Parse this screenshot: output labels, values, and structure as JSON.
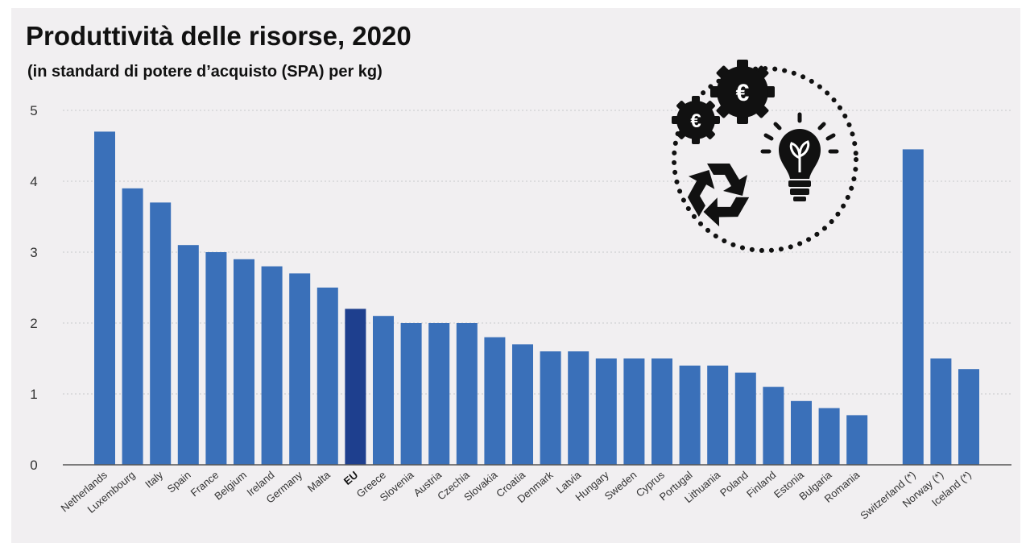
{
  "header": {
    "title": "Produttività delle risorse, 2020",
    "subtitle": "(in standard di potere d’acquisto (SPA) per kg)"
  },
  "icons": [
    "euro-gear-icon",
    "recycle-icon",
    "lightbulb-plant-icon"
  ],
  "colors": {
    "bar": "#3a70b9",
    "bar_highlight": "#1e3f8e",
    "grid": "#c8c8cc",
    "axis": "#555555",
    "background": "#f1eff1"
  },
  "chart_data": {
    "type": "bar",
    "title": "Produttività delle risorse, 2020",
    "subtitle": "(in standard di potere d’acquisto (SPA) per kg)",
    "categories": [
      "Netherlands",
      "Luxembourg",
      "Italy",
      "Spain",
      "France",
      "Belgium",
      "Ireland",
      "Germany",
      "Malta",
      "EU",
      "Greece",
      "Slovenia",
      "Austria",
      "Czechia",
      "Slovakia",
      "Croatia",
      "Denmark",
      "Latvia",
      "Hungary",
      "Sweden",
      "Cyprus",
      "Portugal",
      "Lithuania",
      "Poland",
      "Finland",
      "Estonia",
      "Bulgaria",
      "Romania",
      "Switzerland (*)",
      "Norway (*)",
      "Iceland (*)"
    ],
    "values": [
      4.7,
      3.9,
      3.7,
      3.1,
      3.0,
      2.9,
      2.8,
      2.7,
      2.5,
      2.2,
      2.1,
      2.0,
      2.0,
      2.0,
      1.8,
      1.7,
      1.6,
      1.6,
      1.5,
      1.5,
      1.5,
      1.4,
      1.4,
      1.3,
      1.1,
      0.9,
      0.8,
      0.7,
      4.45,
      1.5,
      1.35
    ],
    "highlight": "EU",
    "yticks": [
      0,
      1,
      2,
      3,
      4,
      5
    ],
    "ylim": [
      0,
      5
    ],
    "grid": true,
    "gap_before": "Switzerland (*)"
  }
}
